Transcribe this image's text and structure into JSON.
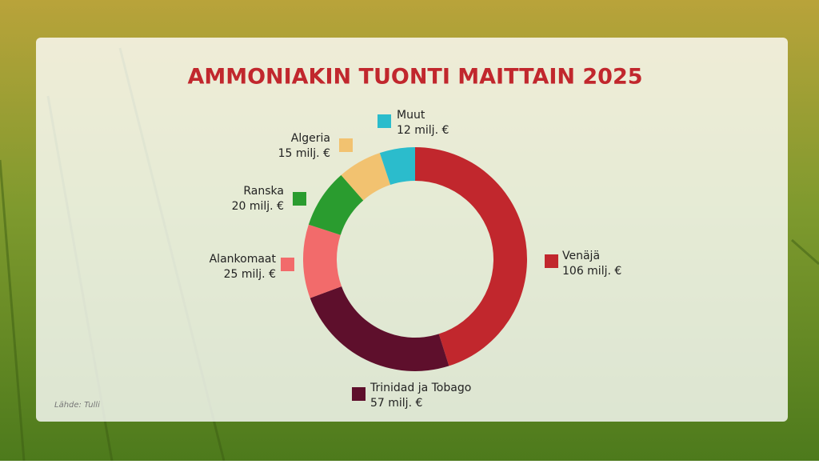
{
  "chart_data": {
    "type": "donut",
    "title": "AMMONIAKIN TUONTI MAITTAIN 2025",
    "categories": [
      "Venäjä",
      "Trinidad ja Tobago",
      "Alankomaat",
      "Ranska",
      "Algeria",
      "Muut"
    ],
    "values": [
      106,
      57,
      25,
      20,
      15,
      12
    ],
    "value_labels": [
      "106 milj. €",
      "57 milj. €",
      "25 milj. €",
      "20 milj. €",
      "15 milj. €",
      "12 milj. €"
    ],
    "colors": [
      "#c1272d",
      "#5e0f2c",
      "#f26b6b",
      "#2a9c2f",
      "#f2c270",
      "#2bbccc"
    ],
    "source": "Lähde: Tulli"
  }
}
